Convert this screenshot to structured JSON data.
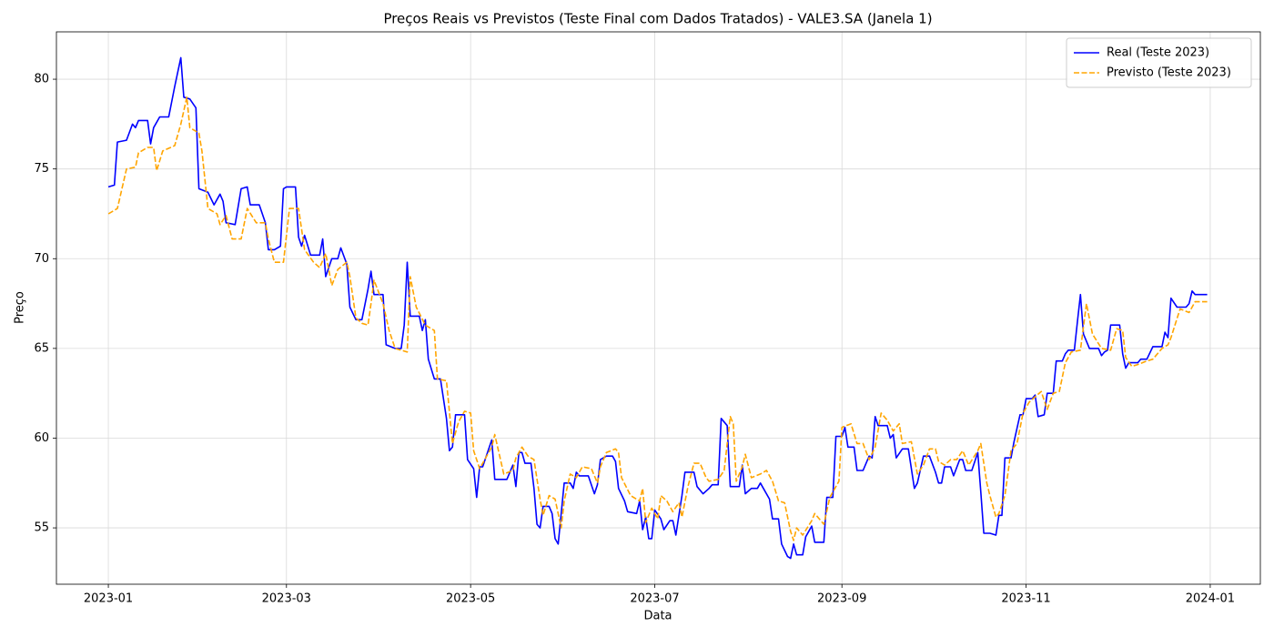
{
  "chart_data": {
    "type": "line",
    "title": "Preços Reais vs Previstos (Teste Final com Dados Tratados) - VALE3.SA (Janela 1)",
    "xlabel": "Data",
    "ylabel": "Preço",
    "xlim": [
      -17.2,
      381.6
    ],
    "xticks": [
      {
        "value": 0,
        "label": "2023-01"
      },
      {
        "value": 59,
        "label": "2023-03"
      },
      {
        "value": 120,
        "label": "2023-05"
      },
      {
        "value": 181,
        "label": "2023-07"
      },
      {
        "value": 243,
        "label": "2023-09"
      },
      {
        "value": 304,
        "label": "2023-11"
      },
      {
        "value": 365,
        "label": "2024-01"
      }
    ],
    "ylim": [
      51.86,
      82.64
    ],
    "yticks": [
      55,
      60,
      65,
      70,
      75,
      80
    ],
    "grid": true,
    "legend": "upper right",
    "series": [
      {
        "name": "Real (Teste 2023)",
        "color": "#0000ff",
        "dash": false,
        "x": [
          0,
          2,
          3,
          6,
          8,
          9,
          10,
          13,
          14,
          15,
          17,
          20,
          22,
          24,
          25,
          27,
          29,
          30,
          33,
          35,
          37,
          38,
          39,
          42,
          44,
          46,
          47,
          50,
          52,
          53,
          55,
          57,
          58,
          59,
          62,
          63,
          64,
          65,
          67,
          70,
          71,
          72,
          74,
          76,
          77,
          79,
          80,
          82,
          84,
          86,
          87,
          88,
          91,
          92,
          95,
          97,
          98,
          99,
          100,
          103,
          104,
          105,
          106,
          108,
          110,
          112,
          113,
          114,
          115,
          118,
          119,
          121,
          122,
          123,
          124,
          127,
          128,
          132,
          134,
          135,
          136,
          137,
          138,
          140,
          141,
          142,
          143,
          144,
          146,
          147,
          148,
          149,
          151,
          153,
          154,
          155,
          156,
          159,
          161,
          162,
          163,
          165,
          167,
          168,
          169,
          171,
          172,
          175,
          176,
          177,
          178,
          179,
          180,
          181,
          183,
          184,
          186,
          187,
          188,
          190,
          191,
          194,
          195,
          197,
          199,
          200,
          202,
          203,
          205,
          206,
          209,
          210,
          211,
          213,
          215,
          216,
          217,
          219,
          220,
          222,
          223,
          225,
          226,
          227,
          228,
          230,
          231,
          233,
          234,
          237,
          238,
          240,
          241,
          243,
          244,
          245,
          247,
          248,
          250,
          252,
          253,
          254,
          255,
          258,
          259,
          260,
          261,
          263,
          265,
          267,
          268,
          270,
          272,
          274,
          275,
          276,
          277,
          279,
          280,
          282,
          283,
          284,
          286,
          288,
          289,
          290,
          292,
          294,
          295,
          296,
          297,
          299,
          300,
          302,
          303,
          304,
          306,
          307,
          308,
          310,
          311,
          313,
          314,
          316,
          317,
          318,
          320,
          321,
          322,
          323,
          325,
          328,
          329,
          330,
          331,
          332,
          335,
          336,
          337,
          338,
          341,
          342,
          344,
          346,
          349,
          350,
          351,
          352,
          354,
          357,
          358,
          359,
          360,
          364
        ],
        "values": [
          74.0,
          74.1,
          76.5,
          76.6,
          77.5,
          77.3,
          77.7,
          77.7,
          76.4,
          77.3,
          77.9,
          77.9,
          79.6,
          81.2,
          79.0,
          78.9,
          78.4,
          73.9,
          73.7,
          73.0,
          73.6,
          73.2,
          72.0,
          71.9,
          73.9,
          74.0,
          73.0,
          73.0,
          72.0,
          70.5,
          70.5,
          70.7,
          73.9,
          74.0,
          74.0,
          71.2,
          70.7,
          71.3,
          70.2,
          70.2,
          71.1,
          69.0,
          70.0,
          70.0,
          70.6,
          69.7,
          67.3,
          66.6,
          66.6,
          68.3,
          69.3,
          68.0,
          68.0,
          65.2,
          65.0,
          65.0,
          66.3,
          69.8,
          66.8,
          66.8,
          66.0,
          66.6,
          64.4,
          63.3,
          63.3,
          61.1,
          59.3,
          59.5,
          61.3,
          61.3,
          58.8,
          58.3,
          56.7,
          58.4,
          58.4,
          59.9,
          57.7,
          57.7,
          58.5,
          57.3,
          59.2,
          59.2,
          58.6,
          58.6,
          57.2,
          55.2,
          55.0,
          56.2,
          56.2,
          55.8,
          54.4,
          54.1,
          57.5,
          57.5,
          57.2,
          58.1,
          57.9,
          57.9,
          56.9,
          57.4,
          58.8,
          59.0,
          59.0,
          58.7,
          57.2,
          56.5,
          55.9,
          55.8,
          56.5,
          54.9,
          55.6,
          54.4,
          54.4,
          56.0,
          55.5,
          54.9,
          55.4,
          55.4,
          54.6,
          56.8,
          58.1,
          58.1,
          57.3,
          56.9,
          57.2,
          57.4,
          57.4,
          61.1,
          60.7,
          57.3,
          57.3,
          58.5,
          56.9,
          57.2,
          57.2,
          57.5,
          57.2,
          56.6,
          55.5,
          55.5,
          54.1,
          53.4,
          53.3,
          54.1,
          53.5,
          53.5,
          54.5,
          55.1,
          54.2,
          54.2,
          56.7,
          56.7,
          60.1,
          60.1,
          60.6,
          59.5,
          59.5,
          58.2,
          58.2,
          59.0,
          58.9,
          61.2,
          60.7,
          60.7,
          60.0,
          60.2,
          58.9,
          59.4,
          59.4,
          57.2,
          57.5,
          59.0,
          59.0,
          58.1,
          57.5,
          57.5,
          58.4,
          58.4,
          57.9,
          58.8,
          58.8,
          58.2,
          58.2,
          59.2,
          57.0,
          54.7,
          54.7,
          54.6,
          55.7,
          55.7,
          58.9,
          58.9,
          59.8,
          61.3,
          61.3,
          62.2,
          62.2,
          62.4,
          61.2,
          61.3,
          62.5,
          62.5,
          64.3,
          64.3,
          64.7,
          64.9,
          64.9,
          66.5,
          68.0,
          65.8,
          65.0,
          65.0,
          64.6,
          64.8,
          64.9,
          66.3,
          66.3,
          64.7,
          63.9,
          64.2,
          64.2,
          64.4,
          64.4,
          65.1,
          65.1,
          65.9,
          65.6,
          67.8,
          67.3,
          67.3,
          67.5,
          68.2,
          68.0,
          68.0
        ]
      },
      {
        "name": "Previsto (Teste 2023)",
        "color": "#ffa500",
        "dash": true,
        "x": [
          0,
          3,
          6,
          9,
          10,
          13,
          15,
          16,
          18,
          22,
          24,
          26,
          27,
          30,
          31,
          33,
          36,
          37,
          39,
          41,
          44,
          46,
          49,
          52,
          53,
          55,
          58,
          60,
          63,
          65,
          68,
          70,
          72,
          74,
          76,
          79,
          80,
          82,
          84,
          86,
          87,
          88,
          91,
          93,
          95,
          99,
          100,
          102,
          105,
          108,
          109,
          112,
          114,
          116,
          118,
          120,
          121,
          123,
          127,
          128,
          131,
          134,
          135,
          137,
          139,
          141,
          143,
          144,
          146,
          148,
          150,
          151,
          153,
          155,
          157,
          160,
          162,
          163,
          165,
          168,
          169,
          170,
          173,
          176,
          177,
          178,
          180,
          182,
          183,
          185,
          187,
          189,
          190,
          192,
          194,
          196,
          198,
          199,
          202,
          204,
          206,
          207,
          208,
          210,
          211,
          213,
          216,
          218,
          220,
          222,
          224,
          226,
          227,
          228,
          230,
          233,
          234,
          237,
          239,
          242,
          243,
          246,
          248,
          250,
          252,
          254,
          256,
          258,
          260,
          262,
          263,
          266,
          268,
          270,
          272,
          274,
          275,
          277,
          279,
          281,
          283,
          285,
          288,
          289,
          291,
          292,
          294,
          295,
          297,
          299,
          301,
          303,
          305,
          307,
          309,
          311,
          313,
          315,
          317,
          319,
          322,
          324,
          326,
          329,
          332,
          334,
          336,
          337,
          339,
          341,
          344,
          346,
          349,
          351,
          352,
          355,
          358,
          360,
          364
        ],
        "values": [
          72.5,
          72.8,
          75.0,
          75.1,
          75.9,
          76.2,
          76.2,
          74.9,
          76.0,
          76.3,
          77.5,
          79.0,
          77.3,
          77.0,
          76.0,
          72.8,
          72.5,
          71.9,
          72.4,
          71.1,
          71.1,
          72.8,
          72.0,
          72.0,
          71.1,
          69.8,
          69.8,
          72.8,
          72.8,
          70.5,
          69.8,
          69.5,
          70.3,
          68.5,
          69.4,
          69.8,
          69.0,
          66.7,
          66.4,
          66.3,
          67.5,
          68.8,
          67.5,
          66.0,
          65.0,
          64.8,
          69.0,
          67.3,
          66.3,
          66.0,
          63.3,
          63.2,
          59.7,
          60.9,
          61.5,
          61.4,
          59.3,
          58.3,
          59.5,
          60.2,
          58.0,
          58.2,
          58.9,
          59.5,
          59.0,
          58.8,
          56.6,
          55.7,
          56.8,
          56.6,
          55.0,
          56.5,
          58.0,
          57.8,
          58.4,
          58.3,
          57.5,
          58.4,
          59.2,
          59.4,
          59.2,
          57.8,
          56.8,
          56.5,
          57.2,
          55.3,
          56.1,
          55.5,
          56.8,
          56.5,
          55.9,
          56.4,
          55.6,
          57.3,
          58.6,
          58.6,
          57.8,
          57.6,
          57.7,
          58.2,
          61.2,
          60.8,
          57.6,
          58.4,
          59.1,
          57.8,
          58.0,
          58.2,
          57.6,
          56.5,
          56.4,
          54.8,
          54.3,
          55.0,
          54.6,
          55.4,
          55.8,
          55.2,
          56.7,
          57.6,
          60.6,
          60.8,
          59.7,
          59.7,
          58.8,
          59.5,
          61.4,
          61.0,
          60.4,
          60.8,
          59.7,
          59.8,
          58.0,
          58.5,
          59.4,
          59.4,
          58.7,
          58.5,
          58.8,
          58.8,
          59.3,
          58.5,
          59.3,
          59.7,
          57.5,
          56.8,
          55.6,
          55.8,
          56.8,
          59.3,
          59.7,
          61.4,
          62.0,
          62.3,
          62.6,
          61.6,
          62.5,
          62.6,
          64.2,
          64.8,
          64.9,
          67.5,
          65.8,
          65.0,
          64.9,
          66.1,
          66.0,
          64.5,
          64.0,
          64.1,
          64.3,
          64.4,
          65.0,
          65.2,
          65.6,
          67.2,
          67.0,
          67.6,
          67.6
        ]
      }
    ]
  }
}
